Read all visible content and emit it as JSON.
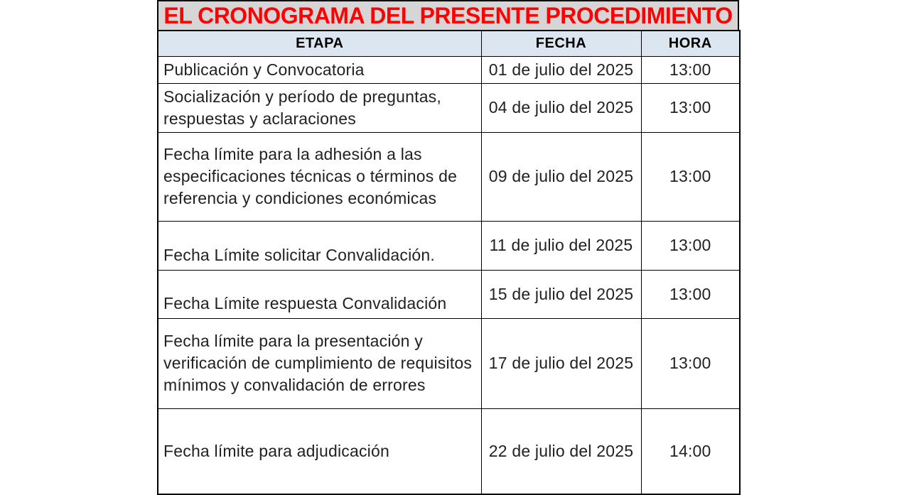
{
  "title": "EL CRONOGRAMA DEL PRESENTE PROCEDIMIENTO",
  "colors": {
    "title_text": "#FF0000",
    "title_background": "#D6D6D6",
    "header_background": "#DCE6F1",
    "border": "#000000",
    "body_text": "#212121"
  },
  "table": {
    "headers": [
      "ETAPA",
      "FECHA",
      "HORA"
    ],
    "rows": [
      {
        "etapa": "Publicación y Convocatoria",
        "fecha": "01 de julio del 2025",
        "hora": "13:00"
      },
      {
        "etapa": "Socialización y período de preguntas, respuestas y aclaraciones",
        "fecha": "04 de julio del 2025",
        "hora": "13:00"
      },
      {
        "etapa": "Fecha límite para la adhesión a las especificaciones técnicas o términos de referencia y condiciones económicas",
        "fecha": "09 de julio del 2025",
        "hora": "13:00"
      },
      {
        "etapa": "Fecha Límite solicitar Convalidación.",
        "fecha": "11 de julio del 2025",
        "hora": "13:00"
      },
      {
        "etapa": "Fecha Límite respuesta Convalidación",
        "fecha": "15 de julio del 2025",
        "hora": "13:00"
      },
      {
        "etapa": "Fecha límite para la presentación y verificación de cumplimiento de requisitos mínimos y convalidación de errores",
        "fecha": "17 de julio del 2025",
        "hora": "13:00"
      },
      {
        "etapa": "Fecha límite para adjudicación",
        "fecha": "22 de julio del 2025",
        "hora": "14:00"
      }
    ]
  }
}
